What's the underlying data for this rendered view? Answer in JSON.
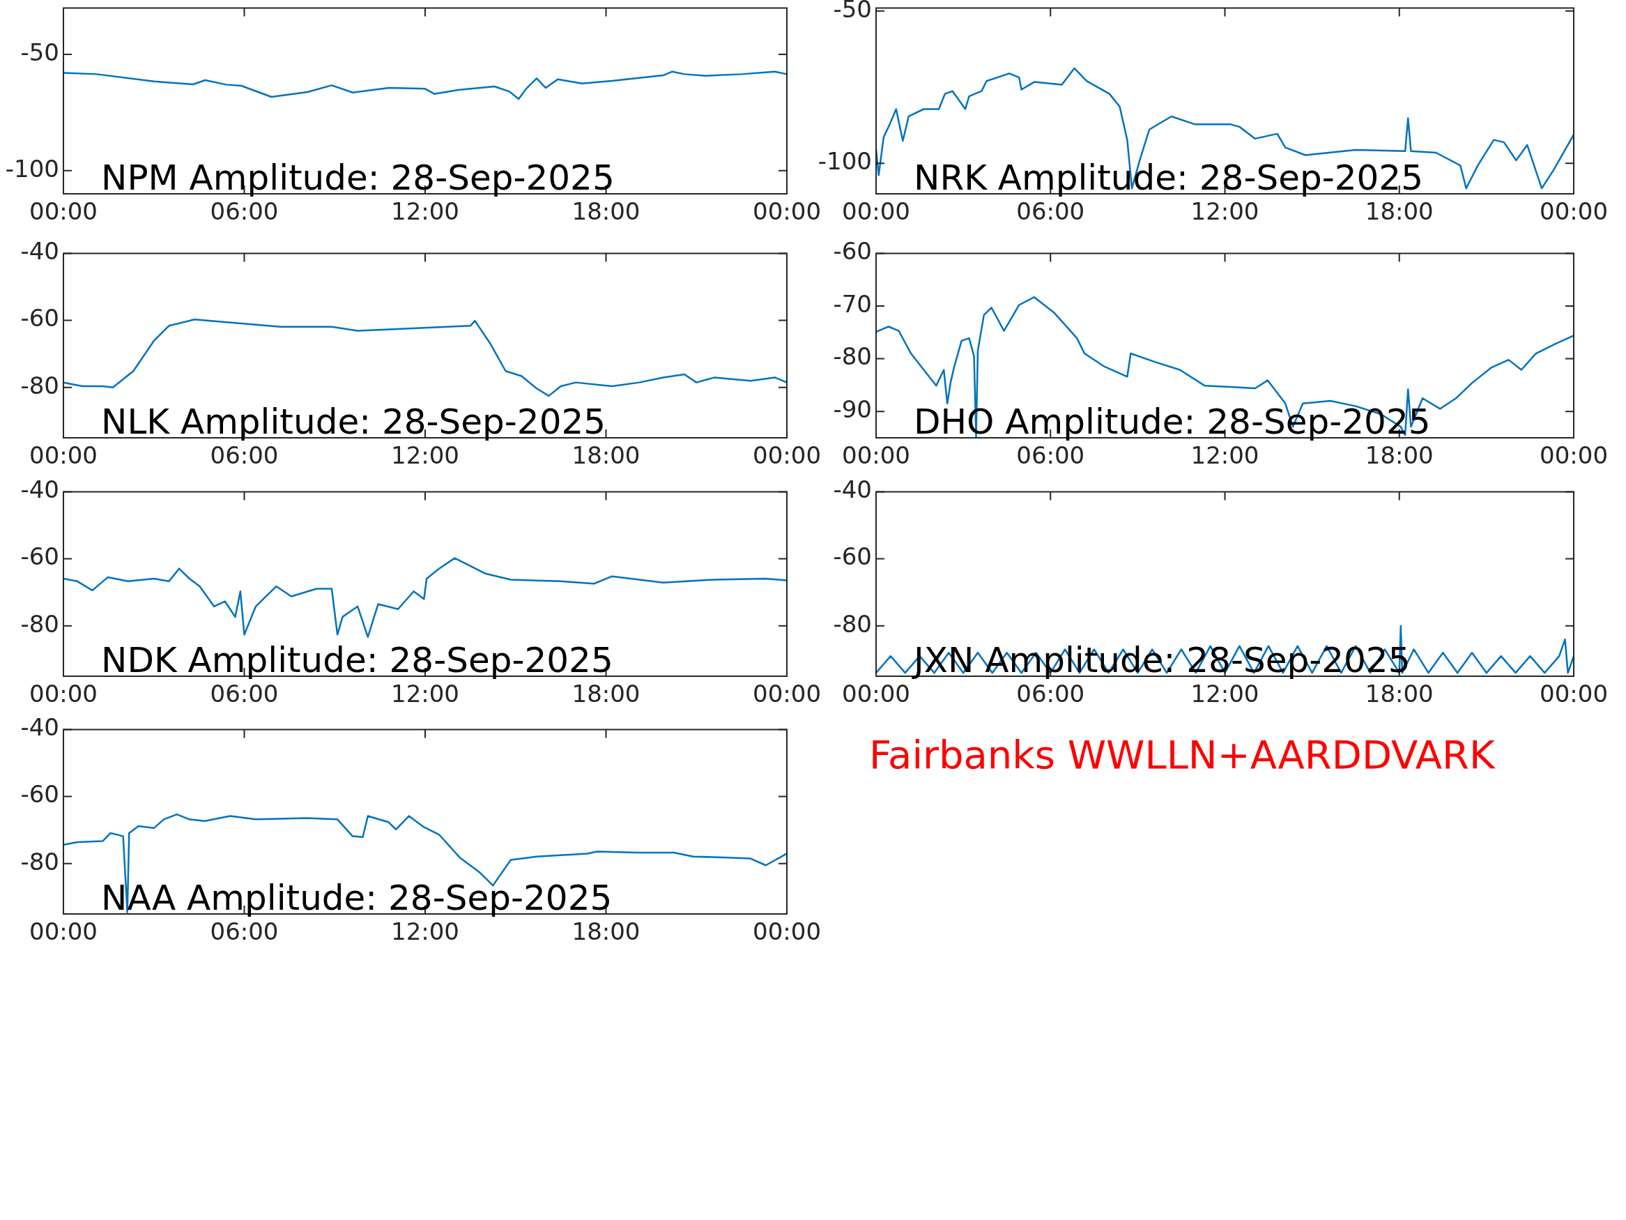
{
  "chart_data": [
    {
      "type": "line",
      "title": "NPM Amplitude: 28-Sep-2025",
      "xlim": [
        0,
        24
      ],
      "xticks": [
        {
          "value": 0,
          "label": "00:00"
        },
        {
          "value": 6,
          "label": "06:00"
        },
        {
          "value": 12,
          "label": "12:00"
        },
        {
          "value": 18,
          "label": "18:00"
        },
        {
          "value": 24,
          "label": "00:00"
        }
      ],
      "ylim": [
        -110,
        -30
      ],
      "yticks": [
        -100,
        -50
      ],
      "series": [
        {
          "color": "#0072bd",
          "x": [
            0,
            1.1,
            3,
            4.3,
            4.7,
            5.4,
            5.9,
            6.9,
            8.1,
            8.9,
            9.6,
            10.8,
            12,
            12.3,
            13.1,
            14.3,
            14.8,
            15.1,
            15.35,
            15.7,
            16,
            16.4,
            17.2,
            18.2,
            19.9,
            20.2,
            20.6,
            21.3,
            22.5,
            23.6,
            24
          ],
          "values": [
            -57.9,
            -58.5,
            -61.6,
            -62.9,
            -61.1,
            -63,
            -63.5,
            -68.3,
            -66.2,
            -63.3,
            -66.4,
            -64.4,
            -64.8,
            -67,
            -65.3,
            -63.8,
            -66,
            -69.2,
            -64.8,
            -60.3,
            -64.4,
            -60.7,
            -62.5,
            -61.4,
            -59,
            -57.4,
            -58.5,
            -59.2,
            -58.5,
            -57.4,
            -58.5
          ]
        }
      ]
    },
    {
      "type": "line",
      "title": "NRK Amplitude: 28-Sep-2025",
      "xlim": [
        0,
        24
      ],
      "xticks": [
        {
          "value": 0,
          "label": "00:00"
        },
        {
          "value": 6,
          "label": "06:00"
        },
        {
          "value": 12,
          "label": "12:00"
        },
        {
          "value": 18,
          "label": "18:00"
        },
        {
          "value": 24,
          "label": "00:00"
        }
      ],
      "ylim": [
        -110,
        -49
      ],
      "yticks": [
        -100,
        -50
      ],
      "series": [
        {
          "color": "#0072bd",
          "x": [
            0,
            0.09,
            0.26,
            0.47,
            0.69,
            0.92,
            1.12,
            1.64,
            2.16,
            2.37,
            2.63,
            3.07,
            3.2,
            3.63,
            3.8,
            4.58,
            4.92,
            5.0,
            5.44,
            6.39,
            6.82,
            7.25,
            8.03,
            8.38,
            8.64,
            8.8,
            9.07,
            9.4,
            10.16,
            10.97,
            12.2,
            12.5,
            13.04,
            13.8,
            14.08,
            14.77,
            16.5,
            18.2,
            18.3,
            18.4,
            19.26,
            20.1,
            20.3,
            20.7,
            21.25,
            21.6,
            22.02,
            22.4,
            22.9,
            23.3,
            23.6,
            24
          ],
          "values": [
            -95.4,
            -103.9,
            -91.4,
            -87.2,
            -82.2,
            -92.6,
            -84.6,
            -82.2,
            -82.2,
            -77.2,
            -76.3,
            -82.2,
            -78,
            -76.3,
            -73,
            -70.5,
            -71.8,
            -75.8,
            -73.3,
            -74.2,
            -68.8,
            -73,
            -77.2,
            -81.4,
            -92.3,
            -108.2,
            -99,
            -88.9,
            -84.6,
            -87.2,
            -87.2,
            -88,
            -91.9,
            -90.3,
            -94.8,
            -97.3,
            -95.6,
            -96,
            -85.2,
            -96,
            -96.5,
            -100.7,
            -108.2,
            -100.7,
            -92.3,
            -93.1,
            -99,
            -94,
            -108.2,
            -102.3,
            -97.3,
            -90.6
          ]
        }
      ]
    },
    {
      "type": "line",
      "title": "NLK Amplitude: 28-Sep-2025",
      "xlim": [
        0,
        24
      ],
      "xticks": [
        {
          "value": 0,
          "label": "00:00"
        },
        {
          "value": 6,
          "label": "06:00"
        },
        {
          "value": 12,
          "label": "12:00"
        },
        {
          "value": 18,
          "label": "18:00"
        },
        {
          "value": 24,
          "label": "00:00"
        }
      ],
      "ylim": [
        -95,
        -40
      ],
      "yticks": [
        -80,
        -60,
        -40
      ],
      "series": [
        {
          "color": "#0072bd",
          "x": [
            0,
            0.63,
            1.3,
            1.64,
            2.32,
            3.0,
            3.5,
            4.35,
            5.5,
            7.2,
            8.9,
            9.76,
            11.45,
            13.5,
            13.65,
            14.16,
            14.67,
            15.2,
            15.7,
            16.1,
            16.5,
            17.0,
            18.2,
            19.1,
            19.9,
            20.6,
            21.0,
            21.6,
            22.8,
            23.6,
            24
          ],
          "values": [
            -78.5,
            -79.6,
            -79.6,
            -80,
            -75.1,
            -66.1,
            -61.6,
            -59.7,
            -60.6,
            -61.9,
            -61.9,
            -63.1,
            -62.4,
            -61.6,
            -60.1,
            -66.9,
            -75.1,
            -76.6,
            -80.3,
            -82.5,
            -79.6,
            -78.5,
            -79.6,
            -78.5,
            -77,
            -76.1,
            -78.5,
            -77,
            -78,
            -77,
            -78.5
          ]
        }
      ]
    },
    {
      "type": "line",
      "title": "DHO Amplitude: 28-Sep-2025",
      "xlim": [
        0,
        24
      ],
      "xticks": [
        {
          "value": 0,
          "label": "00:00"
        },
        {
          "value": 6,
          "label": "06:00"
        },
        {
          "value": 12,
          "label": "12:00"
        },
        {
          "value": 18,
          "label": "18:00"
        },
        {
          "value": 24,
          "label": "00:00"
        }
      ],
      "ylim": [
        -95,
        -60
      ],
      "yticks": [
        -90,
        -80,
        -70,
        -60
      ],
      "series": [
        {
          "color": "#0072bd",
          "x": [
            0,
            0.43,
            0.78,
            1.2,
            1.64,
            2.07,
            2.33,
            2.45,
            2.56,
            2.68,
            2.94,
            3.2,
            3.37,
            3.44,
            3.5,
            3.71,
            3.97,
            4.4,
            4.92,
            5.44,
            6.13,
            6.91,
            7.17,
            7.86,
            8.64,
            8.76,
            9.59,
            10.45,
            11.3,
            13.04,
            13.47,
            14.08,
            14.34,
            14.68,
            15.63,
            16.5,
            17.36,
            18.05,
            18.2,
            18.3,
            18.4,
            18.8,
            19.4,
            19.95,
            20.5,
            21.16,
            21.76,
            22.2,
            22.7,
            23.4,
            24
          ],
          "values": [
            -74.9,
            -73.9,
            -74.7,
            -79,
            -82.1,
            -85.1,
            -82.1,
            -88.5,
            -84.6,
            -81.7,
            -76.6,
            -76.1,
            -79.5,
            -94.8,
            -78.5,
            -71.7,
            -70.3,
            -74.7,
            -69.8,
            -68.3,
            -71.3,
            -76.1,
            -79,
            -81.5,
            -83.4,
            -79,
            -80.6,
            -82.1,
            -85.1,
            -85.6,
            -84.1,
            -88.5,
            -92.9,
            -88.5,
            -88,
            -89,
            -90.5,
            -92.9,
            -94.5,
            -85.8,
            -92.9,
            -87.5,
            -89.5,
            -87.5,
            -84.6,
            -81.7,
            -80.2,
            -82.1,
            -79,
            -77.1,
            -75.6
          ]
        }
      ]
    },
    {
      "type": "line",
      "title": "NDK Amplitude: 28-Sep-2025",
      "xlim": [
        0,
        24
      ],
      "xticks": [
        {
          "value": 0,
          "label": "00:00"
        },
        {
          "value": 6,
          "label": "06:00"
        },
        {
          "value": 12,
          "label": "12:00"
        },
        {
          "value": 18,
          "label": "18:00"
        },
        {
          "value": 24,
          "label": "00:00"
        }
      ],
      "ylim": [
        -95,
        -40
      ],
      "yticks": [
        -80,
        -60,
        -40
      ],
      "series": [
        {
          "color": "#0072bd",
          "x": [
            0,
            0.46,
            0.96,
            1.47,
            2.15,
            3,
            3.5,
            3.84,
            4.18,
            4.52,
            5.0,
            5.36,
            5.7,
            5.87,
            6.0,
            6.38,
            7.06,
            7.56,
            8.4,
            8.9,
            9.09,
            9.26,
            9.76,
            10.1,
            10.44,
            11.1,
            11.62,
            11.96,
            12.05,
            12.47,
            12.98,
            13.49,
            14,
            14.84,
            16.5,
            17.6,
            18.2,
            19.9,
            21.6,
            23.3,
            24
          ],
          "values": [
            -65.9,
            -66.7,
            -69.4,
            -65.5,
            -66.7,
            -65.9,
            -66.7,
            -62.9,
            -65.9,
            -68.2,
            -74.2,
            -72.7,
            -77.3,
            -69.7,
            -82.6,
            -74.2,
            -68.2,
            -71.2,
            -68.9,
            -68.9,
            -82.6,
            -77.3,
            -74.2,
            -83.3,
            -73.5,
            -75,
            -69.7,
            -72,
            -65.9,
            -62.9,
            -59.8,
            -62.1,
            -64.4,
            -66.2,
            -66.7,
            -67.4,
            -65.2,
            -67.1,
            -66.2,
            -65.9,
            -66.4
          ]
        }
      ]
    },
    {
      "type": "line",
      "title": "JXN Amplitude: 28-Sep-2025",
      "xlim": [
        0,
        24
      ],
      "xticks": [
        {
          "value": 0,
          "label": "00:00"
        },
        {
          "value": 6,
          "label": "06:00"
        },
        {
          "value": 12,
          "label": "12:00"
        },
        {
          "value": 18,
          "label": "18:00"
        },
        {
          "value": 24,
          "label": "00:00"
        }
      ],
      "ylim": [
        -95,
        -40
      ],
      "yticks": [
        -80,
        -60,
        -40
      ],
      "series": [
        {
          "color": "#0072bd",
          "x": [
            0,
            0.5,
            1,
            1.5,
            2,
            2.5,
            3,
            3.5,
            4,
            4.5,
            5,
            5.5,
            6,
            6.5,
            7,
            7.5,
            8,
            8.5,
            9,
            9.5,
            10,
            10.5,
            11,
            11.5,
            12,
            12.5,
            13,
            13.5,
            14,
            14.5,
            15,
            15.5,
            16,
            16.5,
            17,
            17.5,
            18,
            18.05,
            18.1,
            18.5,
            19,
            19.5,
            20,
            20.5,
            21,
            21.5,
            22,
            22.5,
            23,
            23.5,
            23.7,
            23.8,
            24
          ],
          "values": [
            -94,
            -89,
            -94,
            -89,
            -94,
            -88,
            -94,
            -88,
            -94,
            -88,
            -94,
            -88,
            -94,
            -87,
            -94,
            -87,
            -94,
            -87,
            -94,
            -87,
            -94,
            -87,
            -94,
            -86,
            -94,
            -86,
            -94,
            -86,
            -94,
            -86,
            -94,
            -86,
            -94,
            -86,
            -94,
            -87,
            -94,
            -80,
            -94,
            -87,
            -94,
            -88,
            -94,
            -88,
            -94,
            -89,
            -94,
            -89,
            -94,
            -89,
            -84,
            -94,
            -89
          ]
        }
      ]
    },
    {
      "type": "line",
      "title": "NAA Amplitude: 28-Sep-2025",
      "xlim": [
        0,
        24
      ],
      "xticks": [
        {
          "value": 0,
          "label": "00:00"
        },
        {
          "value": 6,
          "label": "06:00"
        },
        {
          "value": 12,
          "label": "12:00"
        },
        {
          "value": 18,
          "label": "18:00"
        },
        {
          "value": 24,
          "label": "00:00"
        }
      ],
      "ylim": [
        -95,
        -40
      ],
      "yticks": [
        -80,
        -60,
        -40
      ],
      "series": [
        {
          "color": "#0072bd",
          "x": [
            0,
            0.46,
            1.3,
            1.56,
            1.98,
            2.12,
            2.18,
            2.49,
            3.0,
            3.33,
            3.76,
            4.18,
            4.69,
            5.53,
            6.38,
            8.07,
            9.09,
            9.59,
            9.93,
            10.1,
            10.78,
            11.03,
            11.46,
            11.96,
            12.47,
            13.15,
            13.82,
            14.25,
            14.84,
            15.68,
            17.38,
            17.7,
            19.07,
            20.25,
            20.9,
            22.1,
            22.8,
            23.3,
            24
          ],
          "values": [
            -74.4,
            -73.6,
            -73.3,
            -70.9,
            -71.8,
            -94.5,
            -70.9,
            -68.8,
            -69.4,
            -66.8,
            -65.3,
            -66.8,
            -67.3,
            -65.8,
            -66.8,
            -66.4,
            -66.8,
            -71.8,
            -72.1,
            -65.8,
            -67.6,
            -69.8,
            -65.8,
            -69.1,
            -71.4,
            -78.2,
            -82.7,
            -86.5,
            -78.9,
            -77.9,
            -77,
            -76.4,
            -76.7,
            -76.7,
            -77.9,
            -78.2,
            -78.5,
            -80.5,
            -77
          ]
        }
      ]
    },
    {
      "type": "other",
      "title": "Fairbanks WWLLN+AARDDVARK",
      "color": "#ff0000"
    }
  ]
}
